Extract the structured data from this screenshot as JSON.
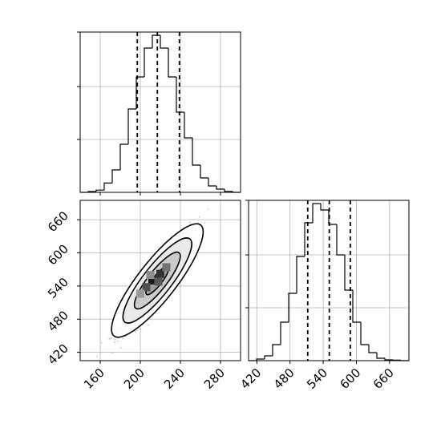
{
  "colors": {
    "ink": "#000000",
    "grid": "#b0b0b0",
    "frame": "#000000",
    "scatter": "#7a7a7a"
  },
  "chart_data": [
    {
      "type": "histogram",
      "panel": "marginal-x",
      "xlim": [
        140,
        300
      ],
      "ylim": [
        0,
        1.0
      ],
      "grid": true,
      "bin_edges": [
        140,
        148,
        156,
        164,
        172,
        180,
        188,
        196,
        204,
        212,
        220,
        228,
        236,
        244,
        252,
        260,
        268,
        276,
        284,
        292,
        300
      ],
      "counts": [
        0.0,
        0.005,
        0.014,
        0.058,
        0.14,
        0.3,
        0.52,
        0.72,
        0.9,
        0.98,
        0.9,
        0.72,
        0.5,
        0.34,
        0.17,
        0.09,
        0.04,
        0.02,
        0.006,
        0.0
      ],
      "quantile_lines": [
        197,
        217,
        239
      ]
    },
    {
      "type": "scatter",
      "panel": "joint",
      "xlim": [
        140,
        300
      ],
      "ylim": [
        405,
        695
      ],
      "xticks": [
        160,
        200,
        240,
        280
      ],
      "yticks": [
        420,
        480,
        540,
        600,
        660
      ],
      "grid": true,
      "center": [
        217,
        550
      ],
      "std": [
        16,
        40
      ],
      "correlation": 0.93,
      "n_points": 1400,
      "contour_levels_sigma": [
        0.5,
        1.0,
        1.5,
        2.0
      ],
      "density_cells": [
        {
          "x": 212,
          "y": 550,
          "level": 0.9
        },
        {
          "x": 220,
          "y": 562,
          "level": 0.8
        },
        {
          "x": 206,
          "y": 538,
          "level": 0.7
        },
        {
          "x": 226,
          "y": 574,
          "level": 0.55
        },
        {
          "x": 200,
          "y": 526,
          "level": 0.4
        },
        {
          "x": 218,
          "y": 548,
          "level": 0.65
        },
        {
          "x": 210,
          "y": 560,
          "level": 0.45
        }
      ]
    },
    {
      "type": "histogram",
      "panel": "marginal-y",
      "xlim": [
        405,
        695
      ],
      "ylim": [
        0,
        1.0
      ],
      "xticks": [
        420,
        480,
        540,
        600,
        660
      ],
      "grid": true,
      "bin_edges": [
        405,
        419.5,
        434,
        448.5,
        463,
        477.5,
        492,
        506.5,
        521,
        535.5,
        550,
        564.5,
        579,
        593.5,
        608,
        622.5,
        637,
        651.5,
        666,
        680.5,
        695
      ],
      "counts": [
        0.0,
        0.01,
        0.03,
        0.1,
        0.24,
        0.42,
        0.65,
        0.86,
        0.98,
        0.94,
        0.85,
        0.66,
        0.44,
        0.24,
        0.1,
        0.05,
        0.015,
        0.005,
        0.003,
        0.0
      ],
      "quantile_lines": [
        512,
        551,
        589
      ]
    }
  ]
}
